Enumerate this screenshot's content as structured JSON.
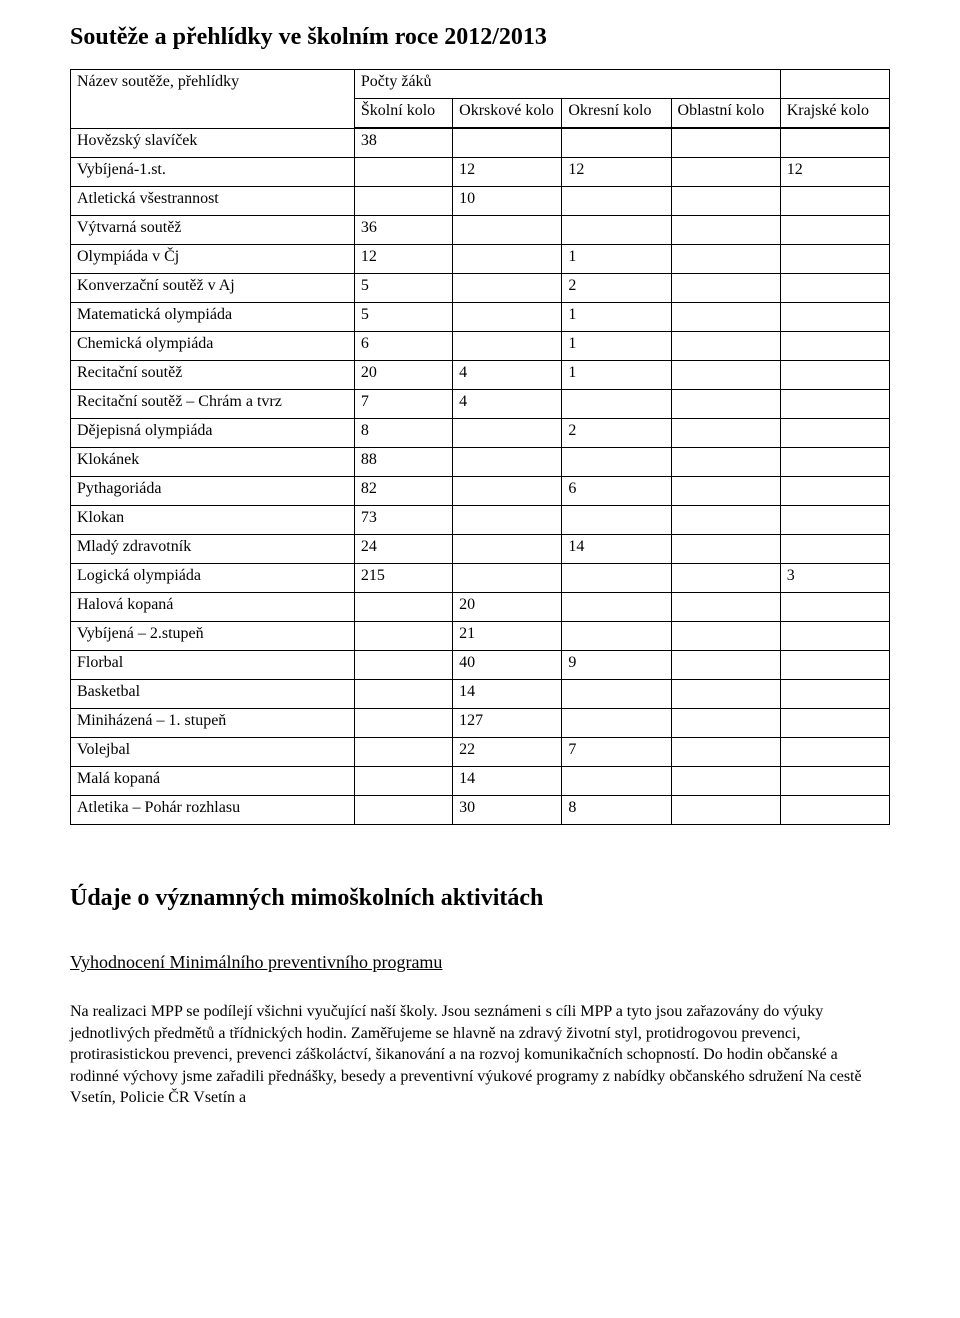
{
  "title": "Soutěže a přehlídky ve školním roce 2012/2013",
  "table": {
    "name_header": "Název soutěže, přehlídky",
    "count_header": "Počty žáků",
    "cols": {
      "skolni": "Školní kolo",
      "okrskove": "Okrskové kolo",
      "okresni": "Okresní kolo",
      "oblastni": "Oblastní kolo",
      "krajske": "Krajské kolo"
    },
    "rows": [
      {
        "name": "Hovězský slavíček",
        "skolni": "38",
        "okrskove": "",
        "okresni": "",
        "oblastni": "",
        "krajske": ""
      },
      {
        "name": "Vybíjená-1.st.",
        "skolni": "",
        "okrskove": "12",
        "okresni": "12",
        "oblastni": "",
        "krajske": "12"
      },
      {
        "name": "Atletická všestrannost",
        "skolni": "",
        "okrskove": "10",
        "okresni": "",
        "oblastni": "",
        "krajske": ""
      },
      {
        "name": "Výtvarná soutěž",
        "skolni": "36",
        "okrskove": "",
        "okresni": "",
        "oblastni": "",
        "krajske": ""
      },
      {
        "name": "Olympiáda v Čj",
        "skolni": "12",
        "okrskove": "",
        "okresni": "1",
        "oblastni": "",
        "krajske": ""
      },
      {
        "name": "Konverzační soutěž v Aj",
        "skolni": "5",
        "okrskove": "",
        "okresni": "2",
        "oblastni": "",
        "krajske": ""
      },
      {
        "name": "Matematická olympiáda",
        "skolni": "5",
        "okrskove": "",
        "okresni": "1",
        "oblastni": "",
        "krajske": ""
      },
      {
        "name": "Chemická olympiáda",
        "skolni": "6",
        "okrskove": "",
        "okresni": "1",
        "oblastni": "",
        "krajske": ""
      },
      {
        "name": "Recitační soutěž",
        "skolni": "20",
        "okrskove": "4",
        "okresni": "1",
        "oblastni": "",
        "krajske": ""
      },
      {
        "name": "Recitační soutěž – Chrám a tvrz",
        "skolni": "7",
        "okrskove": "4",
        "okresni": "",
        "oblastni": "",
        "krajske": ""
      },
      {
        "name": "Dějepisná olympiáda",
        "skolni": "8",
        "okrskove": "",
        "okresni": "2",
        "oblastni": "",
        "krajske": ""
      },
      {
        "name": "Klokánek",
        "skolni": "88",
        "okrskove": "",
        "okresni": "",
        "oblastni": "",
        "krajske": ""
      },
      {
        "name": "Pythagoriáda",
        "skolni": "82",
        "okrskove": "",
        "okresni": "6",
        "oblastni": "",
        "krajske": ""
      },
      {
        "name": "Klokan",
        "skolni": "73",
        "okrskove": "",
        "okresni": "",
        "oblastni": "",
        "krajske": ""
      },
      {
        "name": "Mladý zdravotník",
        "skolni": "24",
        "okrskove": "",
        "okresni": "14",
        "oblastni": "",
        "krajske": ""
      },
      {
        "name": "Logická olympiáda",
        "skolni": "215",
        "okrskove": "",
        "okresni": "",
        "oblastni": "",
        "krajske": "3"
      },
      {
        "name": "Halová kopaná",
        "skolni": "",
        "okrskove": "20",
        "okresni": "",
        "oblastni": "",
        "krajske": ""
      },
      {
        "name": "Vybíjená – 2.stupeň",
        "skolni": "",
        "okrskove": "21",
        "okresni": "",
        "oblastni": "",
        "krajske": ""
      },
      {
        "name": "Florbal",
        "skolni": "",
        "okrskove": "40",
        "okresni": "9",
        "oblastni": "",
        "krajske": ""
      },
      {
        "name": "Basketbal",
        "skolni": "",
        "okrskove": "14",
        "okresni": "",
        "oblastni": "",
        "krajske": ""
      },
      {
        "name": "Miniházená – 1. stupeň",
        "skolni": "",
        "okrskove": "127",
        "okresni": "",
        "oblastni": "",
        "krajske": ""
      },
      {
        "name": "Volejbal",
        "skolni": "",
        "okrskove": "22",
        "okresni": "7",
        "oblastni": "",
        "krajske": ""
      },
      {
        "name": "Malá kopaná",
        "skolni": "",
        "okrskove": "14",
        "okresni": "",
        "oblastni": "",
        "krajske": ""
      },
      {
        "name": "Atletika – Pohár rozhlasu",
        "skolni": "",
        "okrskove": "30",
        "okresni": "8",
        "oblastni": "",
        "krajske": ""
      }
    ]
  },
  "section_title": "Údaje o významných mimoškolních aktivitách",
  "subheading": "Vyhodnocení Minimálního preventivního programu",
  "paragraph": "Na realizaci MPP se podílejí všichni vyučující naší školy. Jsou seznámeni s cíli MPP a tyto jsou zařazovány do výuky jednotlivých předmětů a třídnických hodin. Zaměřujeme se hlavně na zdravý životní styl, protidrogovou prevenci, protirasistickou prevenci, prevenci záškoláctví, šikanování a na rozvoj komunikačních schopností. Do hodin občanské a rodinné výchovy jsme zařadili přednášky, besedy a preventivní výukové programy z nabídky občanského sdružení Na cestě Vsetín, Policie ČR Vsetín a"
}
